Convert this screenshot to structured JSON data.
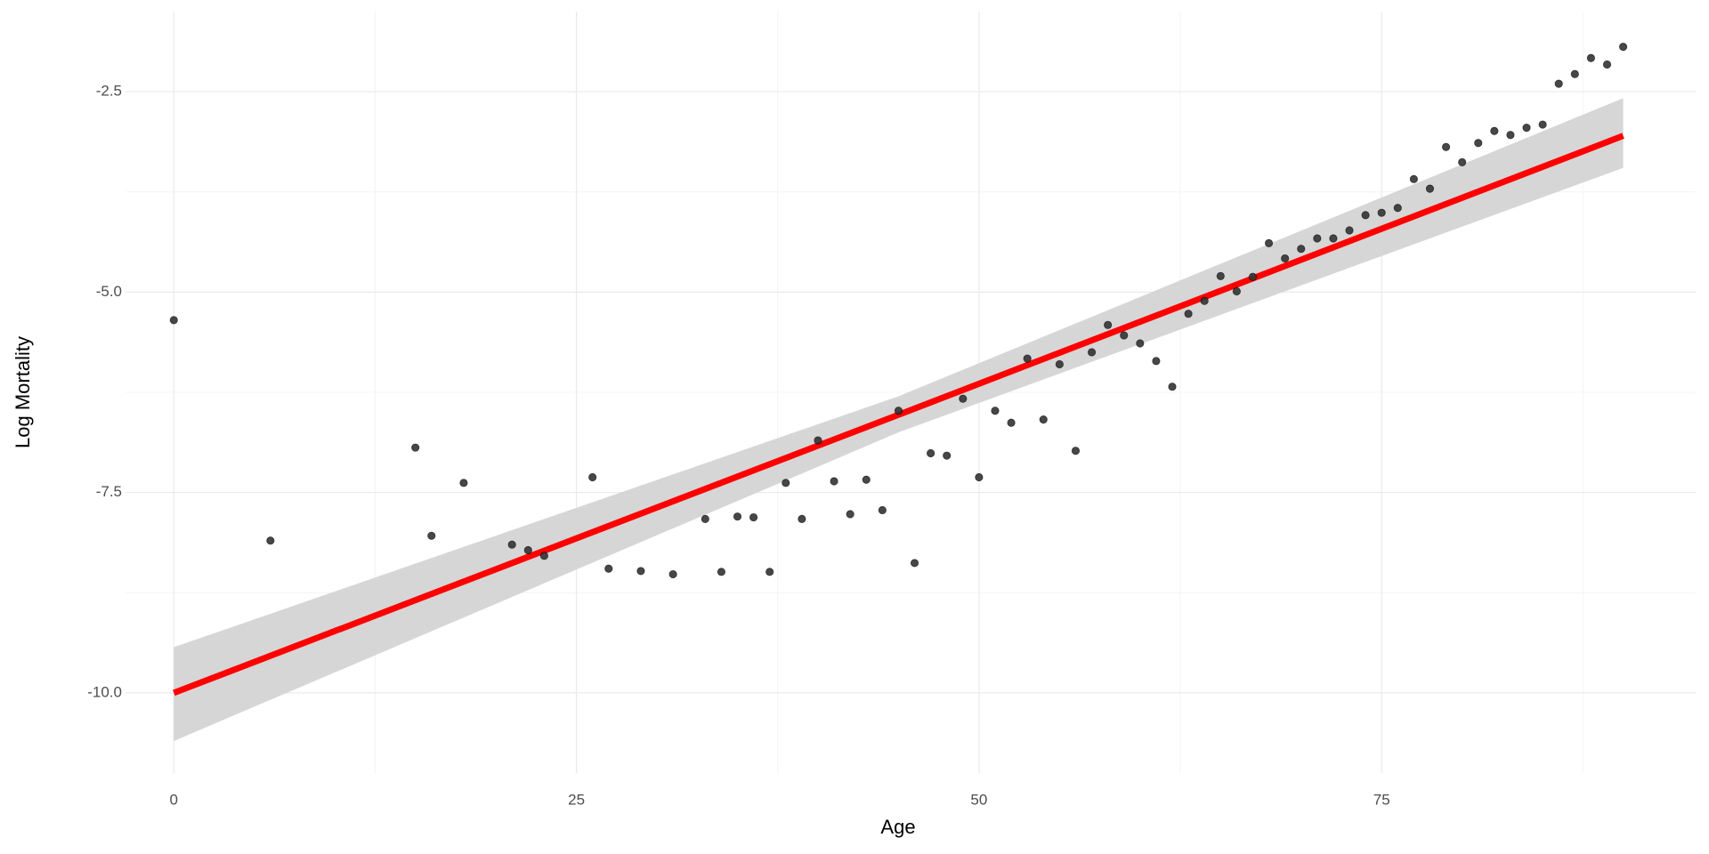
{
  "chart_data": {
    "type": "scatter",
    "x_label": "Age",
    "y_label": "Log Mortality",
    "xlim": [
      -3,
      94.5
    ],
    "ylim": [
      -11.0,
      -1.5
    ],
    "xticks": [
      0,
      25,
      50,
      75
    ],
    "yticks": [
      {
        "value": -10,
        "label": "-10.0"
      },
      -7.5,
      {
        "value": -5,
        "label": "-5.0"
      },
      -2.5
    ],
    "minor_xticks": [
      12.5,
      37.5,
      62.5,
      87.5
    ],
    "minor_yticks": [
      -8.75,
      -6.25,
      -3.75
    ],
    "grid": true,
    "points": {
      "color": "#333333",
      "x": [
        0,
        6,
        15,
        16,
        18,
        21,
        22,
        23,
        26,
        27,
        29,
        31,
        33,
        34,
        35,
        36,
        37,
        38,
        39,
        40,
        41,
        42,
        43,
        44,
        45,
        46,
        47,
        48,
        49,
        50,
        51,
        52,
        53,
        54,
        55,
        56,
        57,
        58,
        59,
        60,
        61,
        62,
        63,
        64,
        65,
        66,
        67,
        68,
        69,
        70,
        71,
        72,
        73,
        74,
        75,
        76,
        77,
        78,
        79,
        80,
        81,
        82,
        83,
        84,
        85,
        86,
        87,
        88,
        89,
        90
      ],
      "values": [
        -5.35,
        -8.1,
        -6.94,
        -8.04,
        -7.38,
        -8.15,
        -8.22,
        -8.29,
        -7.31,
        -8.45,
        -8.48,
        -8.52,
        -7.83,
        -8.49,
        -7.8,
        -7.81,
        -8.49,
        -7.38,
        -7.83,
        -6.85,
        -7.36,
        -7.77,
        -7.34,
        -7.72,
        -6.48,
        -8.38,
        -7.01,
        -7.04,
        -6.33,
        -7.31,
        -6.48,
        -6.63,
        -5.83,
        -6.59,
        -5.9,
        -6.98,
        -5.75,
        -5.41,
        -5.54,
        -5.64,
        -5.86,
        -6.18,
        -5.27,
        -5.11,
        -4.8,
        -4.99,
        -4.81,
        -4.39,
        -4.58,
        -4.46,
        -4.33,
        -4.33,
        -4.23,
        -4.04,
        -4.01,
        -3.95,
        -3.59,
        -3.71,
        -3.19,
        -3.38,
        -3.14,
        -2.99,
        -3.04,
        -2.95,
        -2.91,
        -2.4,
        -2.28,
        -2.08,
        -2.16,
        -1.94
      ]
    },
    "fit": {
      "color": "#ff0000",
      "band_color": "#d6d6d6",
      "x": [
        0,
        45,
        90
      ],
      "values": [
        -10.0,
        -6.53,
        -3.05
      ],
      "lower": [
        -10.6,
        -6.75,
        -3.45
      ],
      "upper": [
        -9.43,
        -6.3,
        -2.58
      ]
    }
  }
}
